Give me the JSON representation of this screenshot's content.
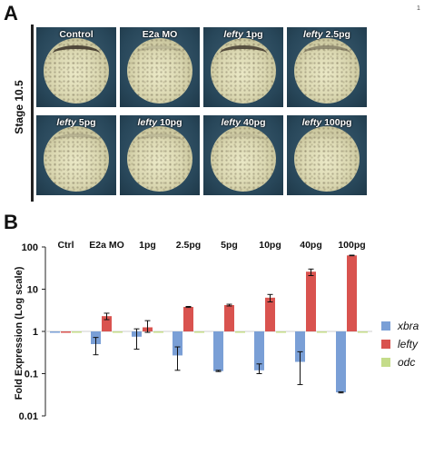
{
  "page_number": "1",
  "panel_a": {
    "letter": "A",
    "stage_label": "Stage 10.5",
    "cells": [
      {
        "gene": "",
        "text": "Control",
        "ring": 0.9
      },
      {
        "gene": "",
        "text": "E2a MO",
        "ring": 0.15
      },
      {
        "gene": "lefty",
        "text": " 1pg",
        "ring": 0.85
      },
      {
        "gene": "lefty",
        "text": " 2.5pg",
        "ring": 0.45
      },
      {
        "gene": "lefty",
        "text": " 5pg",
        "ring": 0.2
      },
      {
        "gene": "lefty",
        "text": " 10pg",
        "ring": 0.15
      },
      {
        "gene": "lefty",
        "text": " 40pg",
        "ring": 0.1
      },
      {
        "gene": "lefty",
        "text": " 100pg",
        "ring": 0.05
      }
    ]
  },
  "panel_b": {
    "letter": "B"
  },
  "chart_data": {
    "type": "bar",
    "ylabel": "Fold Expression (Log scale)",
    "yscale": "log",
    "ylim": [
      0.01,
      100
    ],
    "yticks": [
      "100",
      "10",
      "1",
      "0.1",
      "0.01"
    ],
    "categories": [
      "Ctrl",
      "E2a MO",
      "1pg",
      "2.5pg",
      "5pg",
      "10pg",
      "40pg",
      "100pg"
    ],
    "series": [
      {
        "name": "xbra",
        "color": "#7a9fd6",
        "values": [
          1,
          0.5,
          0.75,
          0.27,
          0.115,
          0.12,
          0.19,
          0.036
        ],
        "err_low": [
          1,
          0.28,
          0.38,
          0.12,
          0.112,
          0.1,
          0.055,
          0.035
        ],
        "err_high": [
          1,
          0.72,
          1.15,
          0.43,
          0.12,
          0.17,
          0.33,
          0.037
        ]
      },
      {
        "name": "lefty",
        "color": "#d9534f",
        "values": [
          1,
          2.3,
          1.25,
          3.8,
          4.2,
          6.3,
          26,
          63
        ],
        "err_low": [
          1,
          1.9,
          0.95,
          3.7,
          4.0,
          5.0,
          21,
          62
        ],
        "err_high": [
          1,
          2.7,
          1.8,
          3.9,
          4.4,
          7.5,
          30,
          64
        ]
      },
      {
        "name": "odc",
        "color": "#c4dc8a",
        "values": [
          1,
          1,
          1,
          1,
          1,
          1,
          1,
          1
        ]
      }
    ],
    "legend": [
      "xbra",
      "lefty",
      "odc"
    ],
    "legend_position": "right",
    "grid": false
  }
}
